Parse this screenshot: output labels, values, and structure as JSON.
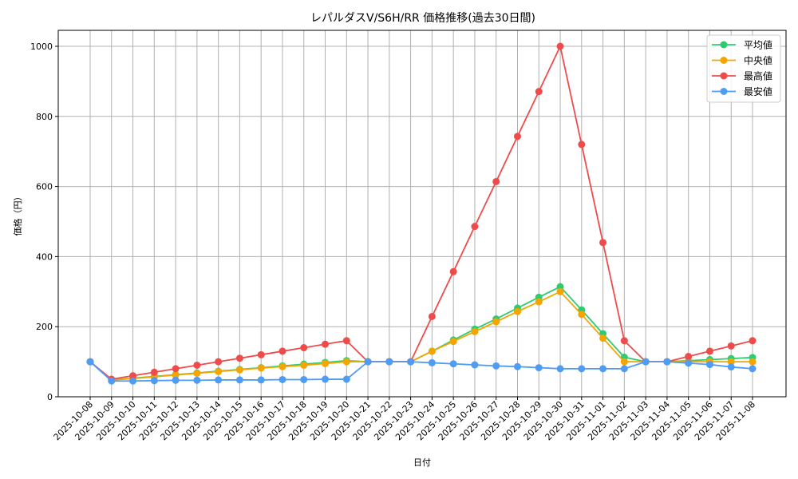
{
  "chart_data": {
    "type": "line",
    "title": "レパルダスV/S6H/RR 価格推移(過去30日間)",
    "xlabel": "日付",
    "ylabel": "価格（円）",
    "ylim": [
      0,
      1045
    ],
    "yticks": [
      0,
      200,
      400,
      600,
      800,
      1000
    ],
    "grid": true,
    "legend_position": "upper right",
    "x": [
      "2025-10-08",
      "2025-10-09",
      "2025-10-10",
      "2025-10-11",
      "2025-10-12",
      "2025-10-13",
      "2025-10-14",
      "2025-10-15",
      "2025-10-16",
      "2025-10-17",
      "2025-10-18",
      "2025-10-19",
      "2025-10-20",
      "2025-10-21",
      "2025-10-22",
      "2025-10-23",
      "2025-10-24",
      "2025-10-25",
      "2025-10-26",
      "2025-10-27",
      "2025-10-28",
      "2025-10-29",
      "2025-10-30",
      "2025-10-31",
      "2025-11-01",
      "2025-11-02",
      "2025-11-03",
      "2025-11-04",
      "2025-11-05",
      "2025-11-06",
      "2025-11-07",
      "2025-11-08"
    ],
    "series": [
      {
        "name": "平均値",
        "color": "#2ecc71",
        "values": [
          100,
          48,
          53,
          58,
          63,
          68,
          73,
          78,
          83,
          88,
          93,
          98,
          103,
          100,
          100,
          100,
          130,
          162,
          193,
          222,
          253,
          284,
          314,
          248,
          180,
          113,
          100,
          100,
          103,
          106,
          109,
          112
        ]
      },
      {
        "name": "中央値",
        "color": "#f5a500",
        "values": [
          100,
          48,
          52,
          57,
          62,
          67,
          72,
          77,
          82,
          86,
          90,
          95,
          100,
          100,
          100,
          100,
          130,
          158,
          186,
          214,
          243,
          271,
          300,
          235,
          167,
          100,
          100,
          100,
          100,
          100,
          100,
          100
        ]
      },
      {
        "name": "最高値",
        "color": "#f04b4b",
        "values": [
          100,
          50,
          60,
          70,
          80,
          90,
          100,
          110,
          120,
          130,
          140,
          150,
          160,
          100,
          100,
          100,
          229,
          357,
          486,
          614,
          743,
          871,
          1000,
          720,
          440,
          160,
          100,
          100,
          115,
          130,
          145,
          160
        ]
      },
      {
        "name": "最安値",
        "color": "#4f9cf5",
        "values": [
          100,
          45,
          45,
          46,
          47,
          47,
          48,
          48,
          48,
          49,
          49,
          50,
          50,
          100,
          100,
          100,
          97,
          94,
          91,
          88,
          86,
          83,
          80,
          80,
          80,
          80,
          100,
          100,
          96,
          92,
          85,
          80
        ]
      }
    ]
  },
  "labels": {
    "title": "レパルダスV/S6H/RR 価格推移(過去30日間)",
    "xlabel": "日付",
    "ylabel": "価格（円）"
  }
}
